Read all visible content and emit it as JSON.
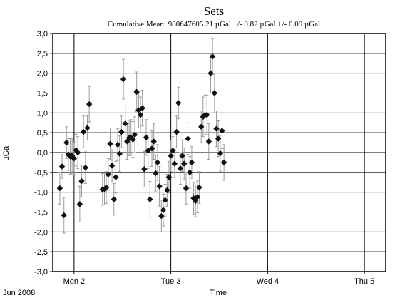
{
  "chart_data": {
    "type": "scatter",
    "title": "Sets",
    "subtitle": "Cumulative Mean:  980647605.21 µGal   +/- 0.82 µGal   +/-  0.09 µGal",
    "xlabel": "Time",
    "ylabel": "µGal",
    "x_date_label": "Jun 2008",
    "x_unit": "days since Jun 2, 2008 00:00",
    "xlim": [
      -0.22,
      3.22
    ],
    "ylim": [
      -3.0,
      3.0
    ],
    "y_ticks": [
      "3,0",
      "2,5",
      "2,0",
      "1,5",
      "1,0",
      "0,5",
      "0,0",
      "-0,5",
      "-1,0",
      "-1,5",
      "-2,0",
      "-2,5",
      "-3,0"
    ],
    "x_ticks": [
      {
        "value": 0,
        "label": "Mon 2"
      },
      {
        "value": 1,
        "label": "Tue 3"
      },
      {
        "value": 2,
        "label": "Wed 4"
      },
      {
        "value": 3,
        "label": "Thu 5"
      }
    ],
    "grid": true,
    "points": [
      {
        "x": -0.147,
        "y": -0.9,
        "err": 0.4
      },
      {
        "x": -0.124,
        "y": -0.35,
        "err": 0.3
      },
      {
        "x": -0.104,
        "y": -1.58,
        "err": 0.45
      },
      {
        "x": -0.078,
        "y": 0.25,
        "err": 0.4
      },
      {
        "x": -0.059,
        "y": -0.05,
        "err": 0.4
      },
      {
        "x": -0.039,
        "y": -0.1,
        "err": 0.45
      },
      {
        "x": -0.02,
        "y": -0.08,
        "err": 0.45
      },
      {
        "x": 0.0,
        "y": -0.15,
        "err": 0.4
      },
      {
        "x": 0.02,
        "y": 0.06,
        "err": 0.4
      },
      {
        "x": 0.039,
        "y": 0.0,
        "err": 0.4
      },
      {
        "x": 0.059,
        "y": -1.3,
        "err": 0.45
      },
      {
        "x": 0.078,
        "y": -0.72,
        "err": 0.4
      },
      {
        "x": 0.098,
        "y": 0.52,
        "err": 0.4
      },
      {
        "x": 0.118,
        "y": -0.38,
        "err": 0.4
      },
      {
        "x": 0.137,
        "y": 0.62,
        "err": 0.3
      },
      {
        "x": 0.157,
        "y": 1.22,
        "err": 0.45
      },
      {
        "x": 0.294,
        "y": -0.93,
        "err": 0.4
      },
      {
        "x": 0.314,
        "y": -0.92,
        "err": 0.4
      },
      {
        "x": 0.333,
        "y": -0.88,
        "err": 0.4
      },
      {
        "x": 0.353,
        "y": -0.55,
        "err": 0.4
      },
      {
        "x": 0.373,
        "y": 0.22,
        "err": 0.4
      },
      {
        "x": 0.392,
        "y": -0.33,
        "err": 0.4
      },
      {
        "x": 0.412,
        "y": -1.18,
        "err": 0.4
      },
      {
        "x": 0.431,
        "y": -0.62,
        "err": 0.4
      },
      {
        "x": 0.451,
        "y": 0.2,
        "err": 0.4
      },
      {
        "x": 0.471,
        "y": -0.03,
        "err": 0.45
      },
      {
        "x": 0.49,
        "y": 0.52,
        "err": 0.4
      },
      {
        "x": 0.51,
        "y": 1.85,
        "err": 0.5
      },
      {
        "x": 0.529,
        "y": 0.73,
        "err": 0.45
      },
      {
        "x": 0.549,
        "y": 0.28,
        "err": 0.45
      },
      {
        "x": 0.569,
        "y": 0.37,
        "err": 0.45
      },
      {
        "x": 0.588,
        "y": 0.38,
        "err": 0.45
      },
      {
        "x": 0.608,
        "y": 0.33,
        "err": 0.45
      },
      {
        "x": 0.627,
        "y": 0.45,
        "err": 0.45
      },
      {
        "x": 0.647,
        "y": 1.53,
        "err": 0.5
      },
      {
        "x": 0.667,
        "y": 1.07,
        "err": 0.45
      },
      {
        "x": 0.686,
        "y": 0.95,
        "err": 0.45
      },
      {
        "x": 0.706,
        "y": 1.12,
        "err": 0.45
      },
      {
        "x": 0.725,
        "y": -0.42,
        "err": 0.45
      },
      {
        "x": 0.745,
        "y": 0.38,
        "err": 0.45
      },
      {
        "x": 0.765,
        "y": 0.05,
        "err": 0.45
      },
      {
        "x": 0.784,
        "y": -1.18,
        "err": 0.45
      },
      {
        "x": 0.804,
        "y": 0.1,
        "err": 0.45
      },
      {
        "x": 0.824,
        "y": 0.28,
        "err": 0.45
      },
      {
        "x": 0.843,
        "y": -0.52,
        "err": 0.45
      },
      {
        "x": 0.863,
        "y": -0.25,
        "err": 0.45
      },
      {
        "x": 0.882,
        "y": -0.85,
        "err": 0.5
      },
      {
        "x": 0.902,
        "y": -1.6,
        "err": 0.4
      },
      {
        "x": 0.922,
        "y": -1.45,
        "err": 0.4
      },
      {
        "x": 0.941,
        "y": -1.2,
        "err": 0.4
      },
      {
        "x": 0.961,
        "y": -0.95,
        "err": 0.4
      },
      {
        "x": 0.98,
        "y": -0.62,
        "err": 0.4
      },
      {
        "x": 1.0,
        "y": -0.08,
        "err": 0.4
      },
      {
        "x": 1.02,
        "y": 0.05,
        "err": 0.35
      },
      {
        "x": 1.039,
        "y": -0.28,
        "err": 0.35
      },
      {
        "x": 1.059,
        "y": 0.52,
        "err": 0.4
      },
      {
        "x": 1.078,
        "y": 1.25,
        "err": 0.4
      },
      {
        "x": 1.098,
        "y": -0.4,
        "err": 0.4
      },
      {
        "x": 1.118,
        "y": -0.08,
        "err": 0.4
      },
      {
        "x": 1.137,
        "y": -0.28,
        "err": 0.4
      },
      {
        "x": 1.157,
        "y": -0.9,
        "err": 0.4
      },
      {
        "x": 1.176,
        "y": 0.35,
        "err": 0.4
      },
      {
        "x": 1.196,
        "y": -0.5,
        "err": 0.4
      },
      {
        "x": 1.216,
        "y": -0.25,
        "err": 0.4
      },
      {
        "x": 1.235,
        "y": -1.15,
        "err": 0.4
      },
      {
        "x": 1.255,
        "y": -1.22,
        "err": 0.4
      },
      {
        "x": 1.275,
        "y": -1.12,
        "err": 0.4
      },
      {
        "x": 1.294,
        "y": -0.88,
        "err": 0.4
      },
      {
        "x": 1.314,
        "y": 0.65,
        "err": 0.4
      },
      {
        "x": 1.333,
        "y": 0.9,
        "err": 0.5
      },
      {
        "x": 1.353,
        "y": 0.95,
        "err": 0.5
      },
      {
        "x": 1.373,
        "y": 0.95,
        "err": 0.5
      },
      {
        "x": 1.392,
        "y": 0.28,
        "err": 0.45
      },
      {
        "x": 1.412,
        "y": 2.0,
        "err": 0.5
      },
      {
        "x": 1.431,
        "y": 2.42,
        "err": 0.45
      },
      {
        "x": 1.451,
        "y": 1.5,
        "err": 0.5
      },
      {
        "x": 1.471,
        "y": 0.6,
        "err": 0.45
      },
      {
        "x": 1.49,
        "y": 0.35,
        "err": 0.45
      },
      {
        "x": 1.51,
        "y": -0.02,
        "err": 0.45
      },
      {
        "x": 1.529,
        "y": 0.55,
        "err": 0.45
      },
      {
        "x": 1.549,
        "y": -0.25,
        "err": 0.45
      }
    ]
  }
}
